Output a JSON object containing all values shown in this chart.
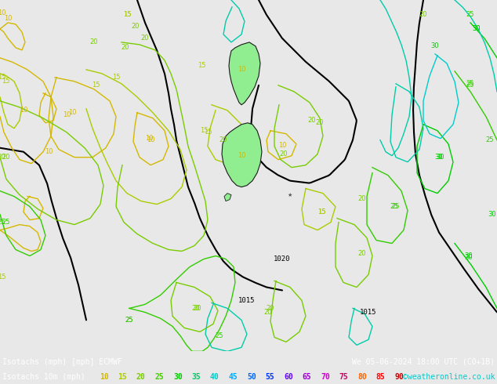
{
  "title_line1": "Isotachs (mph) [mph] ECMWF",
  "title_line2": "Isotachs 10m (mph)",
  "date_str": "We 05-06-2024 18:00 UTC (C0+1B)",
  "watermark": "©weatheronline.co.uk",
  "legend_values": [
    10,
    15,
    20,
    25,
    30,
    35,
    40,
    45,
    50,
    55,
    60,
    65,
    70,
    75,
    80,
    85,
    90
  ],
  "legend_colors": [
    "#d4aa00",
    "#aacc00",
    "#78cc00",
    "#50cc00",
    "#00cc00",
    "#00cc50",
    "#00cc96",
    "#00cccc",
    "#00aaff",
    "#0078ff",
    "#0050ff",
    "#7800ff",
    "#cc00cc",
    "#ff6400",
    "#ff0000",
    "#ff0064",
    "#ff00aa"
  ],
  "bg_color": "#e8e8e8",
  "map_bg": "#e8e8e8",
  "bottom_bar_color": "#000000"
}
